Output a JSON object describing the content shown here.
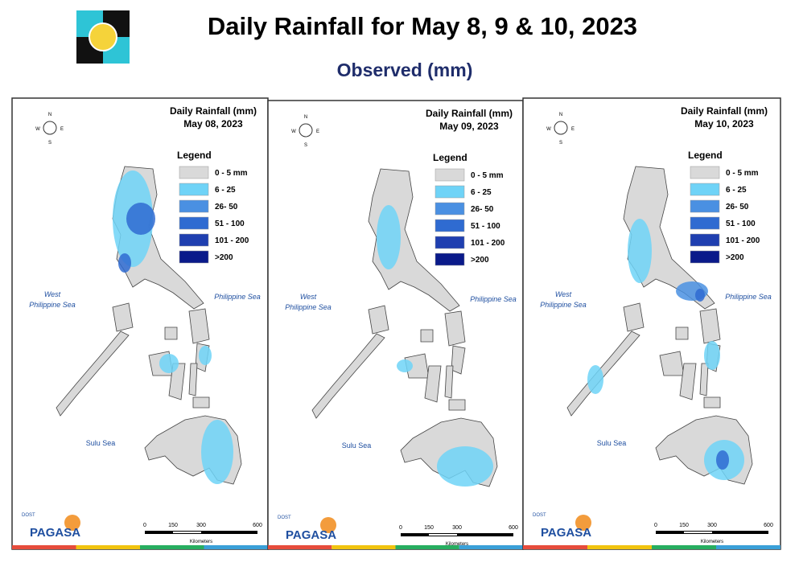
{
  "header": {
    "title": "Daily Rainfall for May 8, 9 & 10, 2023",
    "subtitle": "Observed (mm)"
  },
  "legend": {
    "title": "Legend",
    "items": [
      {
        "label": "0 - 5 mm",
        "color": "#d9d9d9"
      },
      {
        "label": "6 - 25",
        "color": "#6fd3f7"
      },
      {
        "label": "26- 50",
        "color": "#4a90e2"
      },
      {
        "label": "51 - 100",
        "color": "#2f6bd1"
      },
      {
        "label": "101 - 200",
        "color": "#1f3fb0"
      },
      {
        "label": ">200",
        "color": "#0a1a8a"
      }
    ]
  },
  "panels": [
    {
      "title": "Daily Rainfall (mm)",
      "date": "May 08, 2023"
    },
    {
      "title": "Daily Rainfall (mm)",
      "date": "May 09, 2023"
    },
    {
      "title": "Daily Rainfall (mm)",
      "date": "May 10, 2023"
    }
  ],
  "map_labels": {
    "west": [
      "West",
      "Philippine Sea"
    ],
    "east": "Philippine Sea",
    "sulu": "Sulu Sea"
  },
  "compass": {
    "n": "N",
    "s": "S",
    "e": "E",
    "w": "W"
  },
  "scale": {
    "ticks": [
      "0",
      "150",
      "300",
      "600"
    ],
    "unit": "Kilometers"
  },
  "logo": {
    "agency": "PAGASA",
    "dost": "DOST"
  }
}
